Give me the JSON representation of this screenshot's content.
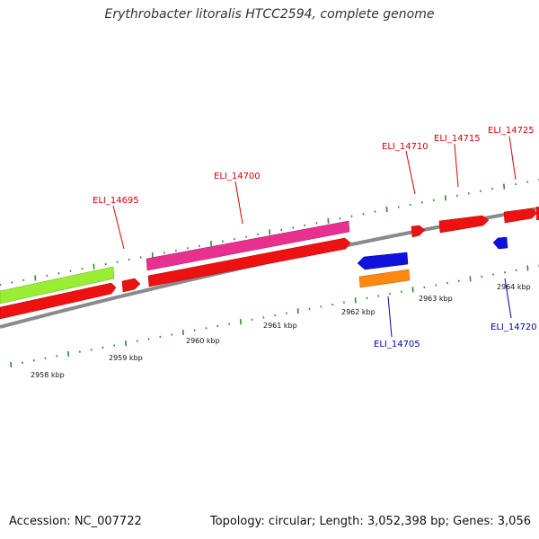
{
  "title": "Erythrobacter litoralis HTCC2594, complete genome",
  "accession": "Accession: NC_007722",
  "summary": "Topology: circular; Length: 3,052,398 bp; Genes: 3,056",
  "colors": {
    "backbone": "#8a8a8a",
    "tick": "#2e8b2e",
    "cds": "#ee1111",
    "rna_pink": "#e8308f",
    "gene_green": "#99ee33",
    "gene_blue": "#1111dd",
    "gene_orange": "#ff8811",
    "label_red": "#dd0000",
    "label_blue": "#0000bb"
  },
  "scale_labels": [
    "2958 kbp",
    "2959 kbp",
    "2960 kbp",
    "2961 kbp",
    "2962 kbp",
    "2963 kbp",
    "2964 kbp"
  ],
  "gene_labels": [
    {
      "id": "g14695",
      "text": "ELI_14695",
      "color": "label_red"
    },
    {
      "id": "g14700",
      "text": "ELI_14700",
      "color": "label_red"
    },
    {
      "id": "g14705",
      "text": "ELI_14705",
      "color": "label_blue"
    },
    {
      "id": "g14710",
      "text": "ELI_14710",
      "color": "label_red"
    },
    {
      "id": "g14715",
      "text": "ELI_14715",
      "color": "label_red"
    },
    {
      "id": "g14720",
      "text": "ELI_14720",
      "color": "label_blue"
    },
    {
      "id": "g14725",
      "text": "ELI_14725",
      "color": "label_red"
    }
  ]
}
